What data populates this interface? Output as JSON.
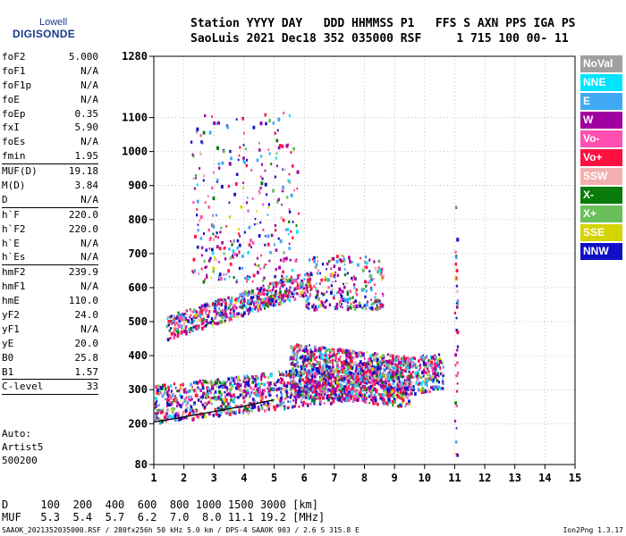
{
  "logo": {
    "line1": "Lowell",
    "line2": "DIGISONDE"
  },
  "header": {
    "line1": "Station YYYY DAY   DDD HHMMSS P1   FFS S AXN PPS IGA PS",
    "line2": "SaoLuis 2021 Dec18 352 035000 RSF     1 715 100 00- 11"
  },
  "params": [
    {
      "name": "foF2",
      "value": "5.000"
    },
    {
      "name": "foF1",
      "value": "N/A"
    },
    {
      "name": "foF1p",
      "value": "N/A"
    },
    {
      "name": "foE",
      "value": "N/A"
    },
    {
      "name": "foEp",
      "value": "0.35"
    },
    {
      "name": "fxI",
      "value": "5.90"
    },
    {
      "name": "foEs",
      "value": "N/A"
    },
    {
      "name": "fmin",
      "value": "1.95"
    },
    {
      "name": "MUF(D)",
      "value": "19.18"
    },
    {
      "name": "M(D)",
      "value": "3.84"
    },
    {
      "name": "D",
      "value": "N/A"
    },
    {
      "name": "h`F",
      "value": "220.0"
    },
    {
      "name": "h`F2",
      "value": "220.0"
    },
    {
      "name": "h`E",
      "value": "N/A"
    },
    {
      "name": "h`Es",
      "value": "N/A"
    },
    {
      "name": "hmF2",
      "value": "239.9"
    },
    {
      "name": "hmF1",
      "value": "N/A"
    },
    {
      "name": "hmE",
      "value": "110.0"
    },
    {
      "name": "yF2",
      "value": "24.0"
    },
    {
      "name": "yF1",
      "value": "N/A"
    },
    {
      "name": "yE",
      "value": "20.0"
    },
    {
      "name": "B0",
      "value": "25.8"
    },
    {
      "name": "B1",
      "value": "1.57"
    },
    {
      "name": "C-level",
      "value": "33"
    }
  ],
  "auto": {
    "line1": "Auto:",
    "line2": "Artist5",
    "line3": "500200"
  },
  "legend": [
    {
      "label": "NoVal",
      "color": "#a0a0a0"
    },
    {
      "label": "NNE",
      "color": "#00e5ff"
    },
    {
      "label": "E",
      "color": "#3fa9f5"
    },
    {
      "label": "W",
      "color": "#a000a0"
    },
    {
      "label": "Vo-",
      "color": "#ff4fb0"
    },
    {
      "label": "Vo+",
      "color": "#ff1040"
    },
    {
      "label": "SSW",
      "color": "#f4b0b0"
    },
    {
      "label": "X-",
      "color": "#0a7a0a"
    },
    {
      "label": "X+",
      "color": "#6abf5a"
    },
    {
      "label": "SSE",
      "color": "#d4d400"
    },
    {
      "label": "NNW",
      "color": "#1010c8"
    }
  ],
  "table": {
    "line1": "D     100  200  400  600  800 1000 1500 3000 [km]",
    "line2": "MUF   5.3  5.4  5.7  6.2  7.0  8.0 11.1 19.2 [MHz]"
  },
  "footer": {
    "text": "SAAOK_2021352035000.RSF / 280fx256h 50 kHz 5.0 km / DPS-4 SAAOK 903 / 2.6 S 315.8 E",
    "version": "Ion2Png 1.3.17"
  },
  "chart_data": {
    "type": "scatter",
    "xlabel": "",
    "ylabel": "",
    "xlim": [
      1,
      15
    ],
    "ylim": [
      80,
      1280
    ],
    "x_ticks": [
      "1",
      "2",
      "3",
      "4",
      "5",
      "6",
      "7",
      "8",
      "9",
      "10",
      "11",
      "12",
      "13",
      "14",
      "15"
    ],
    "y_ticks": [
      "80",
      "200",
      "300",
      "400",
      "500",
      "600",
      "700",
      "800",
      "900",
      "1000",
      "1100",
      "1280"
    ],
    "grid": true,
    "trace": {
      "x": [
        1.0,
        1.5,
        2.0,
        2.5,
        3.0,
        3.5,
        4.0,
        4.5,
        5.0
      ],
      "y": [
        205,
        212,
        220,
        228,
        236,
        244,
        252,
        261,
        270
      ]
    },
    "clusters": [
      {
        "name": "F low",
        "x": [
          1.0,
          10.6
        ],
        "y": [
          210,
          340
        ],
        "density": 1400
      },
      {
        "name": "F main",
        "x": [
          5.5,
          9.5
        ],
        "y": [
          280,
          420
        ],
        "density": 1100
      },
      {
        "name": "F2 upper",
        "x": [
          1.4,
          6.2
        ],
        "y": [
          430,
          620
        ],
        "density": 600
      },
      {
        "name": "F2 tail",
        "x": [
          6.0,
          8.6
        ],
        "y": [
          540,
          700
        ],
        "density": 250
      },
      {
        "name": "spread",
        "x": [
          2.2,
          5.8
        ],
        "y": [
          620,
          1120
        ],
        "density": 320
      },
      {
        "name": "spike 11",
        "x": [
          10.98,
          11.08
        ],
        "y": [
          90,
          900
        ],
        "density": 40
      }
    ]
  }
}
